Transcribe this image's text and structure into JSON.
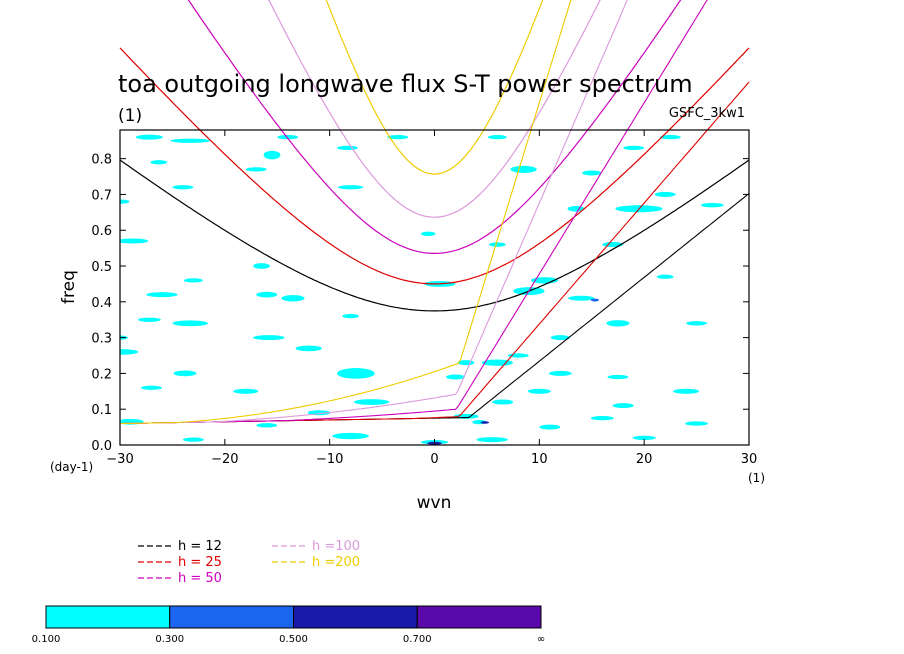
{
  "chart_data": {
    "type": "contour",
    "title": "toa outgoing longwave flux S-T power spectrum",
    "subtitle": "(1)",
    "tag": "GSFC_3kw1",
    "xlabel": "wvn",
    "ylabel": "freq",
    "x_unit": "(1)",
    "y_unit": "(day-1)",
    "xlim": [
      -30,
      30
    ],
    "ylim": [
      0.0,
      0.88
    ],
    "x_ticks": [
      -30,
      -20,
      -10,
      0,
      10,
      20,
      30
    ],
    "x_tick_labels": [
      "−30",
      "−20",
      "−10",
      "0",
      "10",
      "20",
      "30"
    ],
    "y_ticks": [
      0.0,
      0.1,
      0.2,
      0.3,
      0.4,
      0.5,
      0.6,
      0.7,
      0.8
    ],
    "y_tick_labels": [
      "0.0",
      "0.1",
      "0.2",
      "0.3",
      "0.4",
      "0.5",
      "0.6",
      "0.7",
      "0.8"
    ],
    "dispersion_curves": [
      {
        "name": "h = 12",
        "label": "h = 12",
        "h": 12,
        "color": "#000000"
      },
      {
        "name": "h = 25",
        "label": "h = 25",
        "h": 25,
        "color": "#dd0000"
      },
      {
        "name": "h = 50",
        "label": "h = 50",
        "h": 50,
        "color": "#cc00bb"
      },
      {
        "name": "h =100",
        "label": "h =100",
        "h": 100,
        "color": "#dd99dd"
      },
      {
        "name": "h =200",
        "label": "h =200",
        "h": 200,
        "color": "#eecc00"
      }
    ],
    "colorbar": {
      "levels": [
        "0.100",
        "0.300",
        "0.500",
        "0.700",
        "∞"
      ],
      "colors": [
        "#00ffff",
        "#1a66ee",
        "#1a1aaa",
        "#5a0aaa"
      ]
    },
    "contour_patches": [
      {
        "x": -27.2,
        "y": 0.86,
        "w": 2.6,
        "h": 0.014,
        "level": 0
      },
      {
        "x": -23.3,
        "y": 0.85,
        "w": 3.8,
        "h": 0.012,
        "level": 0
      },
      {
        "x": -14.0,
        "y": 0.86,
        "w": 2.0,
        "h": 0.012,
        "level": 0
      },
      {
        "x": -3.5,
        "y": 0.86,
        "w": 2.0,
        "h": 0.012,
        "level": 0
      },
      {
        "x": 6.0,
        "y": 0.86,
        "w": 1.8,
        "h": 0.012,
        "level": 0
      },
      {
        "x": 22.5,
        "y": 0.86,
        "w": 2.0,
        "h": 0.012,
        "level": 0
      },
      {
        "x": -15.5,
        "y": 0.81,
        "w": 1.6,
        "h": 0.024,
        "level": 0
      },
      {
        "x": -8.3,
        "y": 0.83,
        "w": 2.0,
        "h": 0.012,
        "level": 0
      },
      {
        "x": 19.0,
        "y": 0.83,
        "w": 2.0,
        "h": 0.012,
        "level": 0
      },
      {
        "x": -26.3,
        "y": 0.79,
        "w": 1.6,
        "h": 0.012,
        "level": 0
      },
      {
        "x": -17.0,
        "y": 0.77,
        "w": 2.0,
        "h": 0.012,
        "level": 0
      },
      {
        "x": 8.5,
        "y": 0.77,
        "w": 2.5,
        "h": 0.02,
        "level": 0
      },
      {
        "x": 15.0,
        "y": 0.76,
        "w": 1.8,
        "h": 0.014,
        "level": 0
      },
      {
        "x": -24.0,
        "y": 0.72,
        "w": 2.0,
        "h": 0.012,
        "level": 0
      },
      {
        "x": -8.0,
        "y": 0.72,
        "w": 2.4,
        "h": 0.012,
        "level": 0
      },
      {
        "x": 22.0,
        "y": 0.7,
        "w": 2.0,
        "h": 0.014,
        "level": 0
      },
      {
        "x": -30.0,
        "y": 0.68,
        "w": 1.8,
        "h": 0.012,
        "level": 0
      },
      {
        "x": 13.5,
        "y": 0.66,
        "w": 1.6,
        "h": 0.016,
        "level": 0
      },
      {
        "x": 19.5,
        "y": 0.66,
        "w": 4.5,
        "h": 0.02,
        "level": 0
      },
      {
        "x": 26.5,
        "y": 0.67,
        "w": 2.2,
        "h": 0.012,
        "level": 0
      },
      {
        "x": -0.6,
        "y": 0.59,
        "w": 1.4,
        "h": 0.012,
        "level": 0
      },
      {
        "x": -28.8,
        "y": 0.57,
        "w": 3.0,
        "h": 0.014,
        "level": 0
      },
      {
        "x": 6.0,
        "y": 0.56,
        "w": 1.6,
        "h": 0.012,
        "level": 0
      },
      {
        "x": 17.0,
        "y": 0.56,
        "w": 2.0,
        "h": 0.014,
        "level": 0
      },
      {
        "x": -23.0,
        "y": 0.46,
        "w": 1.8,
        "h": 0.012,
        "level": 0
      },
      {
        "x": -16.5,
        "y": 0.5,
        "w": 1.6,
        "h": 0.016,
        "level": 0
      },
      {
        "x": 10.5,
        "y": 0.46,
        "w": 2.6,
        "h": 0.018,
        "level": 0
      },
      {
        "x": 22.0,
        "y": 0.47,
        "w": 1.6,
        "h": 0.012,
        "level": 0
      },
      {
        "x": 0.5,
        "y": 0.45,
        "w": 3.0,
        "h": 0.016,
        "level": 0
      },
      {
        "x": -26.0,
        "y": 0.42,
        "w": 3.0,
        "h": 0.014,
        "level": 0
      },
      {
        "x": -16.0,
        "y": 0.42,
        "w": 2.0,
        "h": 0.016,
        "level": 0
      },
      {
        "x": -13.5,
        "y": 0.41,
        "w": 2.2,
        "h": 0.018,
        "level": 0
      },
      {
        "x": 9.0,
        "y": 0.43,
        "w": 3.0,
        "h": 0.022,
        "level": 0
      },
      {
        "x": 14.0,
        "y": 0.41,
        "w": 2.5,
        "h": 0.014,
        "level": 0
      },
      {
        "x": 15.3,
        "y": 0.405,
        "w": 0.8,
        "h": 0.008,
        "level": 1
      },
      {
        "x": -27.2,
        "y": 0.35,
        "w": 2.2,
        "h": 0.012,
        "level": 0
      },
      {
        "x": -23.3,
        "y": 0.34,
        "w": 3.4,
        "h": 0.016,
        "level": 0
      },
      {
        "x": -8.0,
        "y": 0.36,
        "w": 1.6,
        "h": 0.012,
        "level": 0
      },
      {
        "x": 17.5,
        "y": 0.34,
        "w": 2.2,
        "h": 0.018,
        "level": 0
      },
      {
        "x": 25.0,
        "y": 0.34,
        "w": 2.0,
        "h": 0.012,
        "level": 0
      },
      {
        "x": -30.0,
        "y": 0.3,
        "w": 1.5,
        "h": 0.012,
        "level": 0
      },
      {
        "x": -15.8,
        "y": 0.3,
        "w": 3.0,
        "h": 0.014,
        "level": 0
      },
      {
        "x": 12.0,
        "y": 0.3,
        "w": 1.8,
        "h": 0.014,
        "level": 0
      },
      {
        "x": -30.0,
        "y": 0.26,
        "w": 3.5,
        "h": 0.016,
        "level": 0
      },
      {
        "x": -12.0,
        "y": 0.27,
        "w": 2.5,
        "h": 0.016,
        "level": 0
      },
      {
        "x": 8.0,
        "y": 0.25,
        "w": 2.0,
        "h": 0.012,
        "level": 0
      },
      {
        "x": -23.8,
        "y": 0.2,
        "w": 2.2,
        "h": 0.016,
        "level": 0
      },
      {
        "x": -7.5,
        "y": 0.2,
        "w": 3.6,
        "h": 0.03,
        "level": 0
      },
      {
        "x": 3.0,
        "y": 0.23,
        "w": 1.6,
        "h": 0.014,
        "level": 0
      },
      {
        "x": 6.0,
        "y": 0.23,
        "w": 3.0,
        "h": 0.018,
        "level": 0
      },
      {
        "x": 2.0,
        "y": 0.19,
        "w": 1.8,
        "h": 0.014,
        "level": 0
      },
      {
        "x": 12.0,
        "y": 0.2,
        "w": 2.2,
        "h": 0.014,
        "level": 0
      },
      {
        "x": 17.5,
        "y": 0.19,
        "w": 2.0,
        "h": 0.012,
        "level": 0
      },
      {
        "x": -27.0,
        "y": 0.16,
        "w": 2.0,
        "h": 0.012,
        "level": 0
      },
      {
        "x": -18.0,
        "y": 0.15,
        "w": 2.4,
        "h": 0.014,
        "level": 0
      },
      {
        "x": 10.0,
        "y": 0.15,
        "w": 2.2,
        "h": 0.014,
        "level": 0
      },
      {
        "x": 24.0,
        "y": 0.15,
        "w": 2.5,
        "h": 0.014,
        "level": 0
      },
      {
        "x": -6.0,
        "y": 0.12,
        "w": 3.4,
        "h": 0.016,
        "level": 0
      },
      {
        "x": 6.5,
        "y": 0.12,
        "w": 2.0,
        "h": 0.014,
        "level": 0
      },
      {
        "x": 18.0,
        "y": 0.11,
        "w": 2.0,
        "h": 0.014,
        "level": 0
      },
      {
        "x": -11.0,
        "y": 0.09,
        "w": 2.2,
        "h": 0.014,
        "level": 0
      },
      {
        "x": 3.0,
        "y": 0.08,
        "w": 2.4,
        "h": 0.014,
        "level": 0
      },
      {
        "x": 16.0,
        "y": 0.075,
        "w": 2.2,
        "h": 0.012,
        "level": 0
      },
      {
        "x": -29.0,
        "y": 0.065,
        "w": 2.5,
        "h": 0.016,
        "level": 0
      },
      {
        "x": -16.0,
        "y": 0.055,
        "w": 2.0,
        "h": 0.012,
        "level": 0
      },
      {
        "x": 4.3,
        "y": 0.064,
        "w": 1.4,
        "h": 0.012,
        "level": 0
      },
      {
        "x": 4.8,
        "y": 0.063,
        "w": 0.8,
        "h": 0.007,
        "level": 2
      },
      {
        "x": 11.0,
        "y": 0.05,
        "w": 2.0,
        "h": 0.014,
        "level": 0
      },
      {
        "x": 25.0,
        "y": 0.06,
        "w": 2.2,
        "h": 0.012,
        "level": 0
      },
      {
        "x": -8.0,
        "y": 0.025,
        "w": 3.5,
        "h": 0.018,
        "level": 0
      },
      {
        "x": 0.0,
        "y": 0.008,
        "w": 2.6,
        "h": 0.012,
        "level": 0
      },
      {
        "x": 0.0,
        "y": 0.005,
        "w": 1.4,
        "h": 0.008,
        "level": 2
      },
      {
        "x": 5.5,
        "y": 0.015,
        "w": 3.0,
        "h": 0.014,
        "level": 0
      },
      {
        "x": 20.0,
        "y": 0.02,
        "w": 2.2,
        "h": 0.012,
        "level": 0
      },
      {
        "x": -23.0,
        "y": 0.015,
        "w": 2.0,
        "h": 0.012,
        "level": 0
      }
    ]
  }
}
